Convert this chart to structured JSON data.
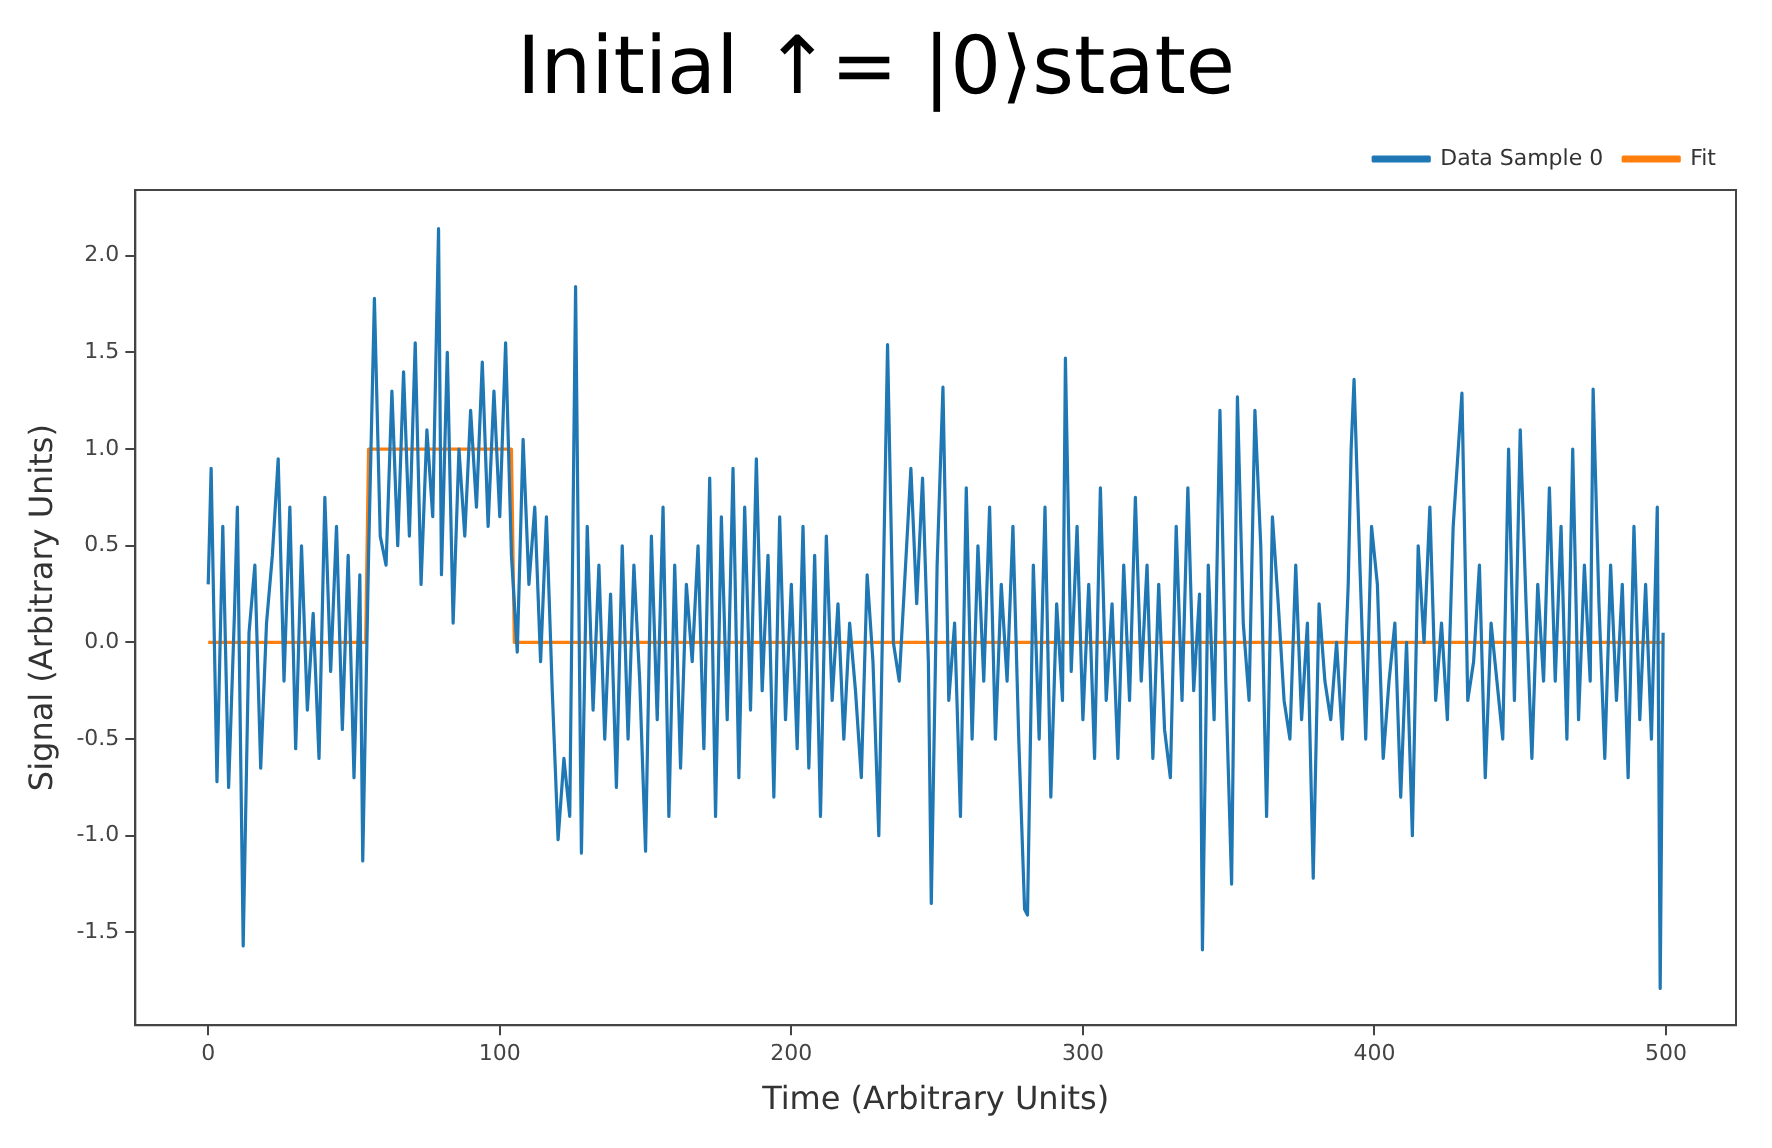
{
  "chart_data": {
    "type": "line",
    "title": "Initial ↑= |0⟩state",
    "xlabel": "Time (Arbitrary Units)",
    "ylabel": "Signal (Arbitrary Units)",
    "xlim": [
      -25,
      524
    ],
    "xticks": [
      0,
      100,
      200,
      300,
      400,
      500
    ],
    "ylim": [
      -1.98,
      2.34
    ],
    "yticks": [
      -1.5,
      {
        "value": -1,
        "label": "-1.0"
      },
      -0.5,
      {
        "value": 0,
        "label": "0.0"
      },
      0.5,
      {
        "value": 1,
        "label": "1.0"
      },
      1.5,
      {
        "value": 2,
        "label": "2.0"
      }
    ],
    "legend": "top right",
    "grid": false,
    "series": [
      {
        "name": "Data Sample 0",
        "color": "#1f77b4",
        "x": [
          0,
          1,
          3,
          5,
          7,
          9,
          10,
          12,
          14,
          16,
          18,
          20,
          22,
          24,
          26,
          28,
          30,
          32,
          34,
          36,
          38,
          40,
          42,
          44,
          46,
          48,
          50,
          52,
          53,
          55,
          57,
          59,
          61,
          63,
          65,
          67,
          69,
          71,
          73,
          75,
          77,
          79,
          80,
          82,
          84,
          86,
          88,
          90,
          92,
          94,
          96,
          98,
          100,
          102,
          104,
          106,
          108,
          110,
          112,
          114,
          116,
          118,
          120,
          122,
          124,
          126,
          128,
          130,
          132,
          134,
          136,
          138,
          140,
          142,
          144,
          146,
          148,
          150,
          152,
          154,
          156,
          158,
          160,
          162,
          164,
          166,
          168,
          170,
          172,
          174,
          176,
          178,
          180,
          182,
          184,
          186,
          188,
          190,
          192,
          194,
          196,
          198,
          200,
          202,
          204,
          206,
          208,
          210,
          212,
          214,
          216,
          218,
          220,
          222,
          224,
          226,
          228,
          230,
          233,
          235,
          237,
          239,
          241,
          243,
          245,
          247,
          248,
          250,
          252,
          254,
          256,
          258,
          260,
          262,
          264,
          266,
          268,
          270,
          272,
          274,
          276,
          278,
          280,
          281,
          283,
          285,
          287,
          289,
          291,
          293,
          294,
          296,
          298,
          300,
          302,
          304,
          306,
          308,
          310,
          312,
          314,
          316,
          318,
          320,
          322,
          324,
          326,
          328,
          330,
          332,
          334,
          336,
          338,
          340,
          341,
          343,
          345,
          347,
          349,
          351,
          353,
          355,
          357,
          359,
          361,
          363,
          365,
          367,
          369,
          371,
          373,
          375,
          377,
          379,
          381,
          383,
          385,
          387,
          389,
          391,
          392,
          393,
          395,
          397,
          399,
          401,
          403,
          405,
          407,
          409,
          411,
          413,
          415,
          417,
          419,
          421,
          423,
          425,
          427,
          430,
          432,
          434,
          436,
          438,
          440,
          442,
          444,
          446,
          448,
          450,
          452,
          454,
          456,
          458,
          460,
          462,
          464,
          466,
          468,
          470,
          472,
          474,
          475,
          477,
          479,
          481,
          483,
          485,
          487,
          489,
          491,
          493,
          495,
          497,
          498,
          499
        ],
        "values": [
          0.3,
          0.9,
          -0.72,
          0.6,
          -0.75,
          0.15,
          0.7,
          -1.57,
          0.05,
          0.4,
          -0.65,
          0.1,
          0.45,
          0.95,
          -0.2,
          0.7,
          -0.55,
          0.5,
          -0.35,
          0.15,
          -0.6,
          0.75,
          -0.15,
          0.6,
          -0.45,
          0.45,
          -0.7,
          0.35,
          -1.13,
          0.45,
          1.78,
          0.55,
          0.4,
          1.3,
          0.5,
          1.4,
          0.55,
          1.55,
          0.3,
          1.1,
          0.65,
          2.14,
          0.35,
          1.5,
          0.1,
          1.0,
          0.55,
          1.2,
          0.7,
          1.45,
          0.6,
          1.3,
          0.65,
          1.55,
          0.45,
          -0.05,
          1.05,
          0.3,
          0.7,
          -0.1,
          0.65,
          -0.25,
          -1.02,
          -0.6,
          -0.9,
          1.84,
          -1.09,
          0.6,
          -0.35,
          0.4,
          -0.5,
          0.25,
          -0.75,
          0.5,
          -0.5,
          0.4,
          -0.2,
          -1.08,
          0.55,
          -0.4,
          0.7,
          -0.9,
          0.4,
          -0.65,
          0.3,
          -0.1,
          0.5,
          -0.55,
          0.85,
          -0.9,
          0.65,
          -0.4,
          0.9,
          -0.7,
          0.7,
          -0.35,
          0.95,
          -0.25,
          0.45,
          -0.8,
          0.65,
          -0.4,
          0.3,
          -0.55,
          0.6,
          -0.65,
          0.45,
          -0.9,
          0.55,
          -0.3,
          0.2,
          -0.5,
          0.1,
          -0.25,
          -0.7,
          0.35,
          -0.1,
          -1.0,
          1.54,
          0.0,
          -0.2,
          0.35,
          0.9,
          0.2,
          0.85,
          -0.1,
          -1.35,
          0.4,
          1.32,
          -0.3,
          0.1,
          -0.9,
          0.8,
          -0.5,
          0.5,
          -0.2,
          0.7,
          -0.5,
          0.3,
          -0.2,
          0.6,
          -0.5,
          -1.38,
          -1.41,
          0.4,
          -0.5,
          0.7,
          -0.8,
          0.2,
          -0.3,
          1.47,
          -0.15,
          0.6,
          -0.4,
          0.3,
          -0.6,
          0.8,
          -0.3,
          0.2,
          -0.6,
          0.4,
          -0.3,
          0.75,
          -0.2,
          0.4,
          -0.6,
          0.3,
          -0.45,
          -0.7,
          0.6,
          -0.3,
          0.8,
          -0.25,
          0.25,
          -1.59,
          0.4,
          -0.4,
          1.2,
          -0.2,
          -1.25,
          1.27,
          0.1,
          -0.3,
          1.2,
          0.5,
          -0.9,
          0.65,
          0.2,
          -0.3,
          -0.5,
          0.4,
          -0.4,
          0.1,
          -1.22,
          0.2,
          -0.2,
          -0.4,
          0.0,
          -0.5,
          0.3,
          1.0,
          1.36,
          0.4,
          -0.5,
          0.6,
          0.3,
          -0.6,
          -0.2,
          0.1,
          -0.8,
          0.0,
          -1.0,
          0.5,
          0.0,
          0.7,
          -0.3,
          0.1,
          -0.4,
          0.6,
          1.29,
          -0.3,
          -0.1,
          0.4,
          -0.7,
          0.1,
          -0.2,
          -0.5,
          1.0,
          -0.3,
          1.1,
          0.2,
          -0.6,
          0.3,
          -0.2,
          0.8,
          -0.2,
          0.6,
          -0.5,
          1.0,
          -0.4,
          0.4,
          -0.2,
          1.31,
          0.2,
          -0.6,
          0.4,
          -0.3,
          0.3,
          -0.7,
          0.6,
          -0.4,
          0.3,
          -0.5,
          0.7,
          -1.79,
          0.05
        ]
      },
      {
        "name": "Fit",
        "color": "#ff7f0e",
        "x": [
          0,
          54,
          55,
          104,
          105,
          499
        ],
        "values": [
          0,
          0,
          1,
          1,
          0,
          0
        ]
      }
    ]
  }
}
